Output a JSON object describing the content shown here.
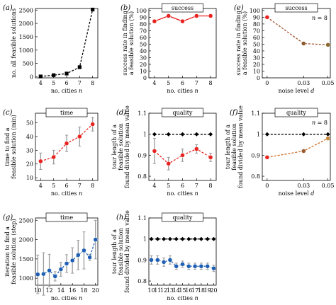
{
  "chart_data": [
    {
      "id": "a",
      "panel_label": "(a)",
      "type": "line",
      "xlabel": "no. cities n",
      "ylabel": "no. all feasible solutions",
      "box_title": "",
      "annotation": "",
      "x": [
        4,
        5,
        6,
        7,
        8
      ],
      "xlim": [
        3.6,
        8.4
      ],
      "ylim": [
        -40,
        2560
      ],
      "xticks": [
        4,
        5,
        6,
        7,
        8
      ],
      "yticks": [
        0,
        500,
        1000,
        1500,
        2000,
        2500
      ],
      "series": [
        {
          "values": [
            12,
            60,
            120,
            360,
            2520
          ],
          "color": "#000000",
          "marker": "square",
          "dashed": true
        }
      ]
    },
    {
      "id": "b",
      "panel_label": "(b)",
      "type": "line",
      "xlabel": "no. cities n",
      "ylabel": "success rate in finding a feasible solution (%)",
      "box_title": "success",
      "annotation": "",
      "x": [
        4,
        5,
        6,
        7,
        8
      ],
      "xlim": [
        3.6,
        8.4
      ],
      "ylim": [
        0,
        103
      ],
      "xticks": [
        4,
        5,
        6,
        7,
        8
      ],
      "yticks": [
        0,
        10,
        20,
        30,
        40,
        50,
        60,
        70,
        80,
        90,
        100
      ],
      "series": [
        {
          "values": [
            84,
            92,
            84,
            92,
            92
          ],
          "color": "#e8231f",
          "marker": "circle",
          "dashed": false
        }
      ]
    },
    {
      "id": "e",
      "panel_label": "(e)",
      "type": "line",
      "xlabel": "noise level d",
      "ylabel": "success rate in finding a feasible solution (%)",
      "box_title": "success",
      "annotation": "n = 8",
      "x": [
        0,
        0.03,
        0.05
      ],
      "xlim": [
        -0.004,
        0.052
      ],
      "ylim": [
        0,
        103
      ],
      "xticks": [
        0,
        0.03,
        0.05
      ],
      "yticks": [
        0,
        10,
        20,
        30,
        40,
        50,
        60,
        70,
        80,
        90,
        100
      ],
      "series": [
        {
          "values": [
            90,
            51,
            49
          ],
          "point_colors": [
            "#e8231f",
            "#8b5a2b",
            "#8b6a2e"
          ],
          "color": "#a0522d",
          "marker": "circle",
          "dashed": true
        }
      ]
    },
    {
      "id": "c",
      "panel_label": "(c)",
      "type": "line",
      "xlabel": "no. cities n",
      "ylabel": "time to find a feasible solution (min)",
      "box_title": "time",
      "annotation": "",
      "x": [
        4,
        5,
        6,
        7,
        8
      ],
      "xlim": [
        3.6,
        8.4
      ],
      "ylim": [
        8,
        57
      ],
      "xticks": [
        4,
        5,
        6,
        7,
        8
      ],
      "yticks": [
        10,
        20,
        30,
        40,
        50
      ],
      "series": [
        {
          "values": [
            22,
            25,
            35,
            40,
            49
          ],
          "errors": [
            6,
            5,
            6,
            7,
            5
          ],
          "color": "#e8231f",
          "marker": "circle",
          "dashed": true
        }
      ]
    },
    {
      "id": "d",
      "panel_label": "(d)",
      "type": "line",
      "xlabel": "no. cities n",
      "ylabel": "tour length of a feasible solution found divided by mean value",
      "box_title": "quality",
      "annotation": "",
      "x": [
        4,
        5,
        6,
        7,
        8
      ],
      "xlim": [
        3.6,
        8.4
      ],
      "ylim": [
        0.78,
        1.1
      ],
      "xticks": [
        4,
        5,
        6,
        7,
        8
      ],
      "yticks": [
        0.8,
        0.9,
        1.0,
        1.1
      ],
      "series": [
        {
          "values": [
            1.0,
            1.0,
            1.0,
            1.0,
            1.0
          ],
          "color": "#000000",
          "marker": "diamond",
          "dashed": true
        },
        {
          "values": [
            0.92,
            0.86,
            0.9,
            0.93,
            0.89
          ],
          "errors": [
            0.06,
            0.03,
            0.03,
            0.02,
            0.02
          ],
          "color": "#e8231f",
          "marker": "circle",
          "dashed": true
        }
      ]
    },
    {
      "id": "f",
      "panel_label": "(f)",
      "type": "line",
      "xlabel": "noise level d",
      "ylabel": "tour length of a feasible solution found divided by mean value",
      "box_title": "quality",
      "annotation": "n = 8",
      "x": [
        0,
        0.03,
        0.05
      ],
      "xlim": [
        -0.004,
        0.052
      ],
      "ylim": [
        0.78,
        1.1
      ],
      "xticks": [
        0,
        0.03,
        0.05
      ],
      "yticks": [
        0.8,
        0.9,
        1.0,
        1.1
      ],
      "series": [
        {
          "values": [
            1.0,
            1.0,
            1.0
          ],
          "color": "#000000",
          "marker": "diamond",
          "dashed": true
        },
        {
          "values": [
            0.89,
            0.92,
            0.98
          ],
          "point_colors": [
            "#e8231f",
            "#9a5a30",
            "#c8873a"
          ],
          "color": "#d2691e",
          "marker": "circle",
          "dashed": true
        }
      ]
    },
    {
      "id": "g",
      "panel_label": "(g)",
      "type": "line",
      "xlabel": "no. cities n",
      "ylabel": "iteration to find a feasible solution (step)",
      "box_title": "time",
      "annotation": "",
      "x": [
        10,
        11,
        12,
        13,
        14,
        15,
        16,
        17,
        18,
        19,
        20
      ],
      "xlim": [
        9.6,
        20.4
      ],
      "ylim": [
        820,
        2560
      ],
      "xticks": [
        10,
        12,
        14,
        16,
        18,
        20
      ],
      "yticks": [
        1000,
        1500,
        2000,
        2500
      ],
      "series": [
        {
          "values": [
            1100,
            1110,
            1200,
            1050,
            1230,
            1380,
            1460,
            1600,
            1720,
            1540,
            2000
          ],
          "errors": [
            500,
            550,
            420,
            120,
            180,
            230,
            330,
            380,
            480,
            80,
            500
          ],
          "color": "#1f5fb4",
          "marker": "circle",
          "dashed": true
        }
      ]
    },
    {
      "id": "h",
      "panel_label": "(h)",
      "type": "line",
      "xlabel": "no. cities n",
      "ylabel": "tour length of a feasible solution found divided by mean value",
      "box_title": "quality",
      "annotation": "",
      "x": [
        10,
        11,
        12,
        13,
        14,
        15,
        16,
        17,
        18,
        19,
        20
      ],
      "xlim": [
        9.6,
        20.4
      ],
      "ylim": [
        0.78,
        1.1
      ],
      "xticks": [
        10,
        11,
        12,
        13,
        14,
        15,
        16,
        17,
        18,
        19,
        20
      ],
      "yticks": [
        0.8,
        0.9,
        1.0,
        1.1
      ],
      "series": [
        {
          "values": [
            1.0,
            1.0,
            1.0,
            1.0,
            1.0,
            1.0,
            1.0,
            1.0,
            1.0,
            1.0,
            1.0
          ],
          "color": "#000000",
          "marker": "diamond",
          "dashed": true
        },
        {
          "values": [
            0.9,
            0.9,
            0.89,
            0.9,
            0.87,
            0.88,
            0.87,
            0.87,
            0.87,
            0.87,
            0.86
          ],
          "errors": [
            0.02,
            0.02,
            0.02,
            0.02,
            0.015,
            0.015,
            0.015,
            0.015,
            0.015,
            0.015,
            0.015
          ],
          "color": "#1f5fb4",
          "marker": "circle",
          "dashed": true
        }
      ]
    }
  ]
}
